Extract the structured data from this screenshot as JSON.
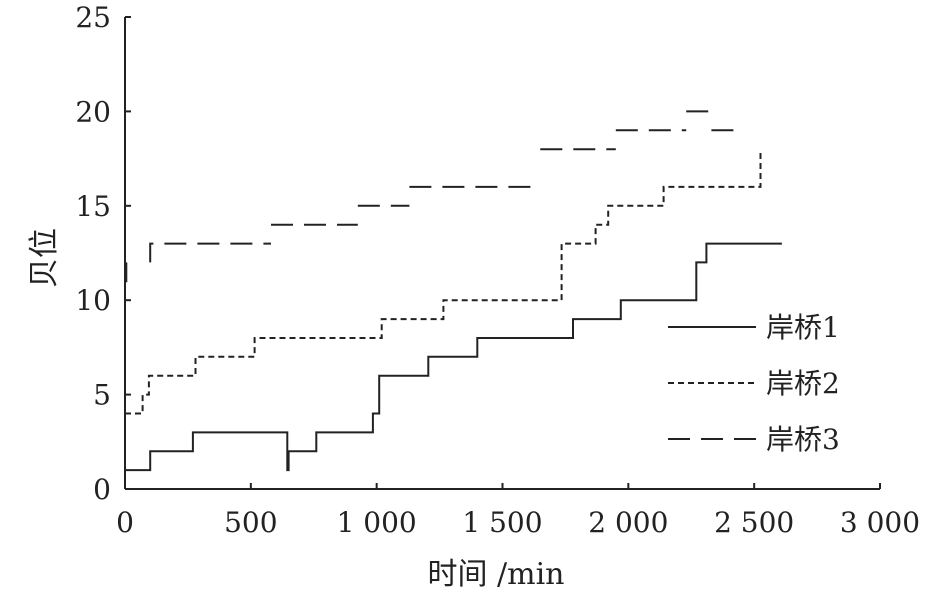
{
  "chart_data": {
    "type": "line",
    "xlabel": "时间 /min",
    "ylabel": "贝位",
    "xlim": [
      0,
      3000
    ],
    "ylim": [
      0,
      25
    ],
    "x_ticks": [
      "0",
      "500",
      "1 000",
      "1 500",
      "2 000",
      "2 500",
      "3 000"
    ],
    "y_ticks": [
      "0",
      "5",
      "10",
      "15",
      "20",
      "25"
    ],
    "x_tick_values": [
      0,
      500,
      1000,
      1500,
      2000,
      2500,
      3000
    ],
    "y_tick_values": [
      0,
      5,
      10,
      15,
      20,
      25
    ],
    "grid": false,
    "legend_position": "right",
    "series": [
      {
        "name": "岸桥1",
        "style": "solid",
        "points": [
          [
            0,
            1
          ],
          [
            100,
            1
          ],
          [
            100,
            2
          ],
          [
            270,
            2
          ],
          [
            270,
            3
          ],
          [
            645,
            3
          ],
          [
            645,
            1
          ],
          [
            650,
            1
          ],
          [
            650,
            2
          ],
          [
            760,
            2
          ],
          [
            760,
            3
          ],
          [
            985,
            3
          ],
          [
            985,
            4
          ],
          [
            1010,
            4
          ],
          [
            1010,
            6
          ],
          [
            1205,
            6
          ],
          [
            1205,
            7
          ],
          [
            1400,
            7
          ],
          [
            1400,
            8
          ],
          [
            1780,
            8
          ],
          [
            1780,
            9
          ],
          [
            1970,
            9
          ],
          [
            1970,
            10
          ],
          [
            2270,
            10
          ],
          [
            2270,
            12
          ],
          [
            2310,
            12
          ],
          [
            2310,
            13
          ],
          [
            2610,
            13
          ]
        ]
      },
      {
        "name": "岸桥2",
        "style": "dotted",
        "points": [
          [
            0,
            4
          ],
          [
            70,
            4
          ],
          [
            70,
            5
          ],
          [
            95,
            5
          ],
          [
            95,
            6
          ],
          [
            280,
            6
          ],
          [
            280,
            7
          ],
          [
            515,
            7
          ],
          [
            515,
            8
          ],
          [
            1020,
            8
          ],
          [
            1020,
            9
          ],
          [
            1265,
            9
          ],
          [
            1265,
            10
          ],
          [
            1735,
            10
          ],
          [
            1735,
            13
          ],
          [
            1870,
            13
          ],
          [
            1870,
            14
          ],
          [
            1920,
            14
          ],
          [
            1920,
            15
          ],
          [
            2140,
            15
          ],
          [
            2140,
            16
          ],
          [
            2525,
            16
          ],
          [
            2525,
            18
          ]
        ]
      },
      {
        "name": "岸桥3",
        "style": "dashed",
        "segments": [
          [
            [
              0,
              11
            ],
            [
              5,
              11
            ],
            [
              5,
              12
            ]
          ],
          [
            [
              100,
              12
            ],
            [
              100,
              13
            ],
            [
              580,
              13
            ]
          ],
          [
            [
              580,
              14
            ],
            [
              925,
              14
            ]
          ],
          [
            [
              925,
              15
            ],
            [
              1130,
              15
            ]
          ],
          [
            [
              1130,
              16
            ],
            [
              1650,
              16
            ]
          ],
          [
            [
              1650,
              18
            ],
            [
              1950,
              18
            ]
          ],
          [
            [
              1950,
              19
            ],
            [
              2230,
              19
            ]
          ],
          [
            [
              2230,
              20
            ],
            [
              2330,
              20
            ]
          ],
          [
            [
              2330,
              19
            ],
            [
              2430,
              19
            ]
          ]
        ]
      }
    ]
  }
}
